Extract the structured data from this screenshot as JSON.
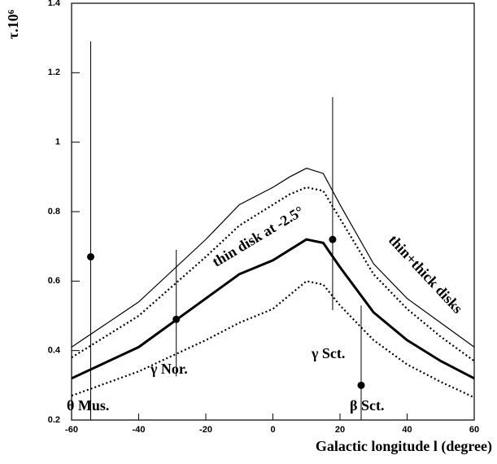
{
  "chart_data": {
    "type": "line",
    "x_label": "Galactic longitude l (degree)",
    "y_label": "τ.10⁶",
    "x": [
      -60,
      -40,
      -20,
      -10,
      0,
      5,
      10,
      15,
      20,
      30,
      40,
      50,
      60
    ],
    "series": [
      {
        "name": "thin+thick disks",
        "style": "thin",
        "color": "#000000",
        "values": [
          0.41,
          0.54,
          0.72,
          0.82,
          0.87,
          0.9,
          0.925,
          0.91,
          0.82,
          0.65,
          0.55,
          0.48,
          0.41
        ]
      },
      {
        "style": "dotted",
        "color": "#000000",
        "values": [
          0.38,
          0.5,
          0.67,
          0.76,
          0.82,
          0.85,
          0.87,
          0.86,
          0.78,
          0.62,
          0.52,
          0.44,
          0.37
        ]
      },
      {
        "name": "thin disk at -2.5°",
        "style": "thick",
        "color": "#000000",
        "values": [
          0.32,
          0.41,
          0.55,
          0.62,
          0.66,
          0.69,
          0.72,
          0.71,
          0.64,
          0.51,
          0.43,
          0.37,
          0.32
        ]
      },
      {
        "style": "dotted",
        "color": "#000000",
        "values": [
          0.27,
          0.34,
          0.43,
          0.48,
          0.52,
          0.56,
          0.6,
          0.59,
          0.53,
          0.43,
          0.36,
          0.31,
          0.265
        ]
      }
    ],
    "points": {
      "labels": [
        "θ Mus.",
        "γ Nor.",
        "γ Sct.",
        "β Sct."
      ],
      "x": [
        -54.3,
        -28.8,
        17.8,
        26.3
      ],
      "values": [
        0.67,
        0.49,
        0.72,
        0.3
      ],
      "err_low": [
        0.2,
        0.326,
        0.516,
        0.2
      ],
      "err_high": [
        1.29,
        0.69,
        1.13,
        0.53
      ]
    },
    "xlim": [
      -60,
      60
    ],
    "ylim": [
      0.2,
      1.4
    ],
    "xticks": [
      -60,
      -40,
      -20,
      0,
      20,
      40,
      60
    ],
    "yticks": [
      0.2,
      0.4,
      0.6,
      0.8,
      1,
      1.2,
      1.4
    ]
  }
}
